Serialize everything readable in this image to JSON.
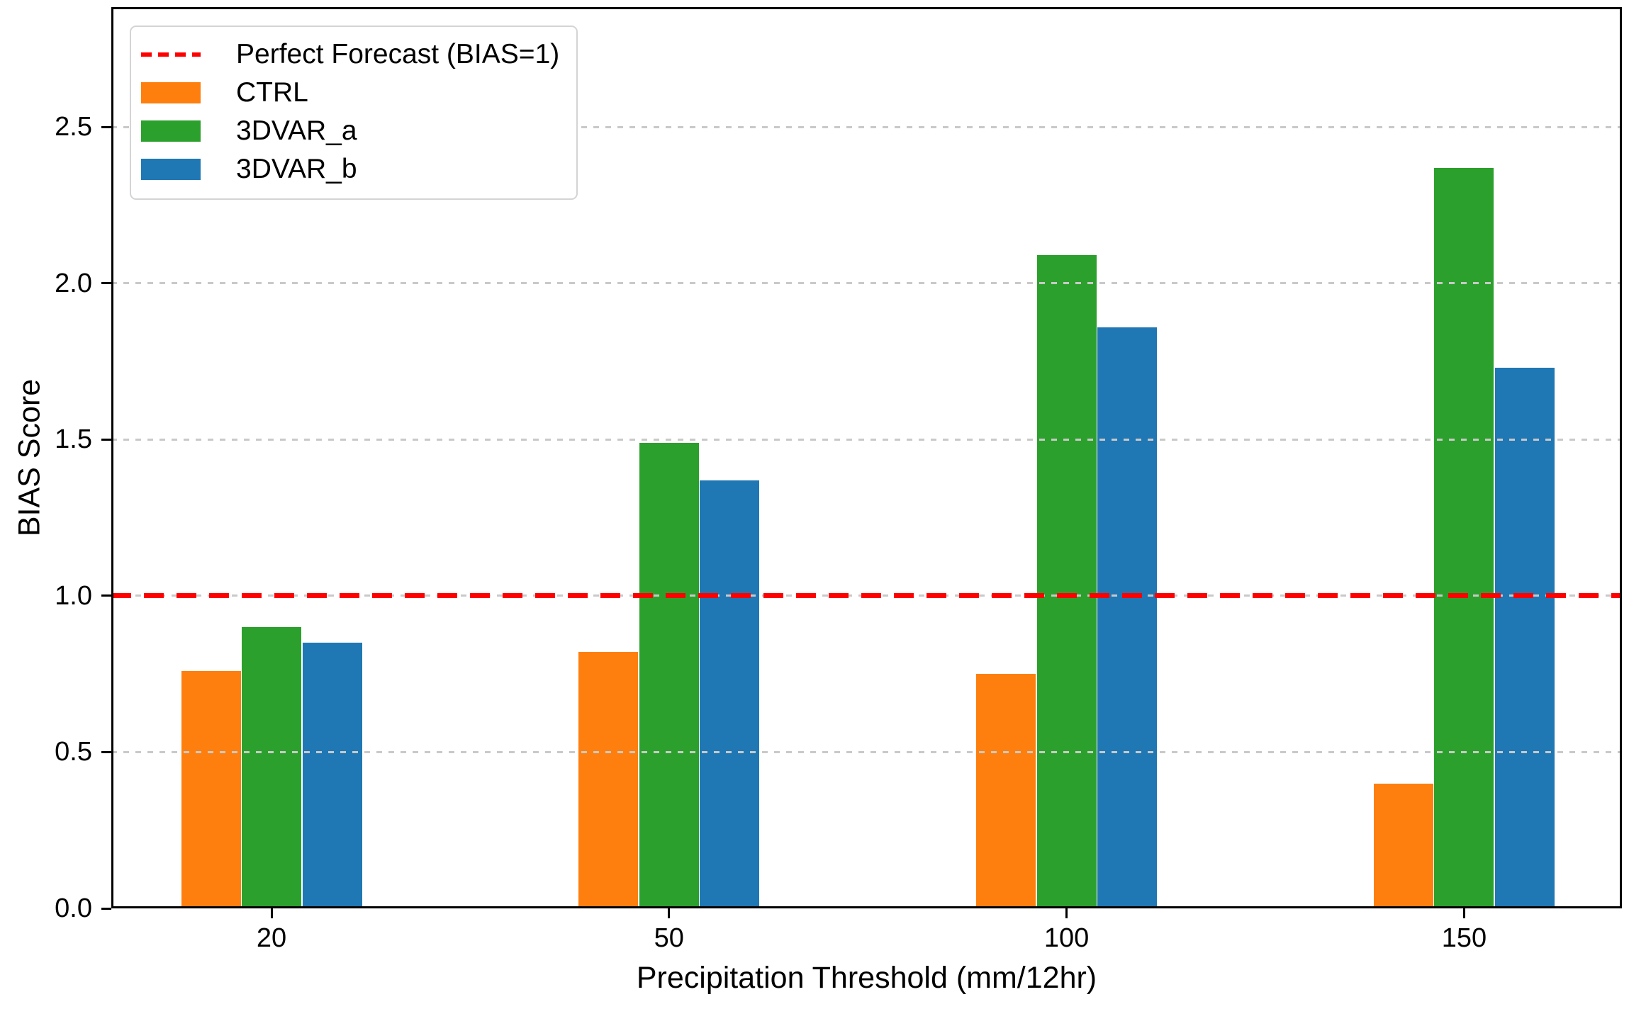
{
  "chart_data": {
    "type": "bar",
    "title": "",
    "xlabel": "Precipitation Threshold (mm/12hr)",
    "ylabel": "BIAS Score",
    "categories": [
      "20",
      "50",
      "100",
      "150"
    ],
    "series": [
      {
        "name": "CTRL",
        "color": "#ff7f0e",
        "values": [
          0.76,
          0.82,
          0.75,
          0.4
        ]
      },
      {
        "name": "3DVAR_a",
        "color": "#2ca02c",
        "values": [
          0.9,
          1.49,
          2.09,
          2.37
        ]
      },
      {
        "name": "3DVAR_b",
        "color": "#1f77b4",
        "values": [
          0.85,
          1.37,
          1.86,
          1.73
        ]
      }
    ],
    "reference_line": {
      "label": "Perfect Forecast (BIAS=1)",
      "value": 1.0,
      "color": "#ff0000",
      "style": "dashed"
    },
    "yticks": [
      0.0,
      0.5,
      1.0,
      1.5,
      2.0,
      2.5
    ],
    "ytick_labels": [
      "0.0",
      "0.5",
      "1.0",
      "1.5",
      "2.0",
      "2.5"
    ],
    "ylim": [
      0,
      2.884
    ],
    "grid": {
      "axis": "y",
      "style": "dashed",
      "color": "#c9c9c9",
      "above_bars": true
    },
    "legend": {
      "position": "upper-left",
      "entries": [
        {
          "label": "Perfect Forecast (BIAS=1)",
          "swatch": "dash-line",
          "color": "#ff0000"
        },
        {
          "label": "CTRL",
          "swatch": "rect",
          "color": "#ff7f0e"
        },
        {
          "label": "3DVAR_a",
          "swatch": "rect",
          "color": "#2ca02c"
        },
        {
          "label": "3DVAR_b",
          "swatch": "rect",
          "color": "#1f77b4"
        }
      ]
    }
  }
}
